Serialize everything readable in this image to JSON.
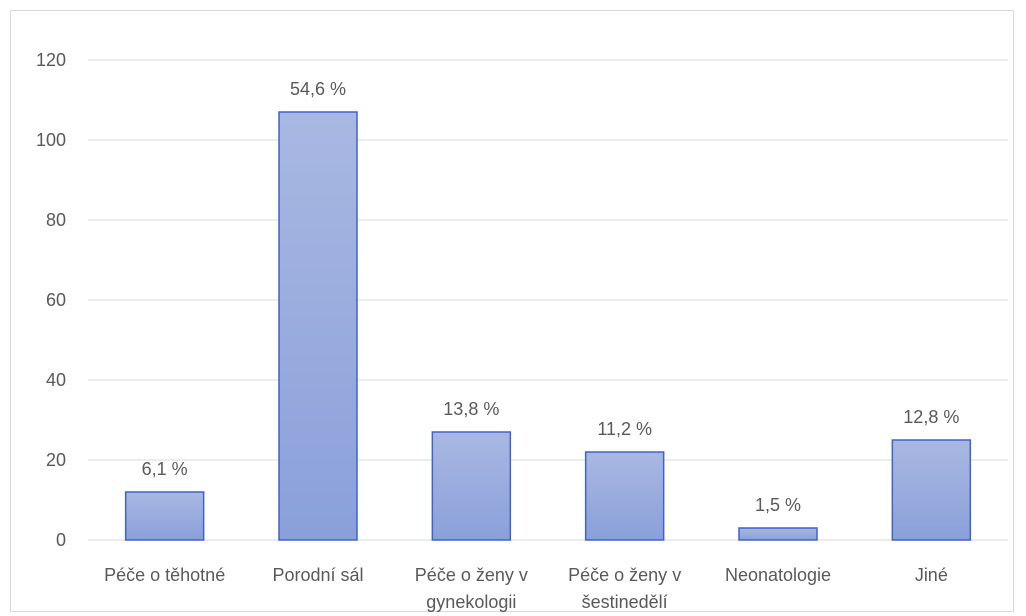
{
  "chart_data": {
    "type": "bar",
    "categories": [
      [
        "Péče o těhotné"
      ],
      [
        "Porodní sál"
      ],
      [
        "Péče o ženy v",
        "gynekologii"
      ],
      [
        "Péče o ženy v",
        "šestinedělí"
      ],
      [
        "Neonatologie"
      ],
      [
        "Jiné"
      ]
    ],
    "values": [
      12,
      107,
      27,
      22,
      3,
      25
    ],
    "data_labels": [
      "6,1 %",
      "54,6 %",
      "13,8 %",
      "11,2 %",
      "1,5 %",
      "12,8 %"
    ],
    "yticks": [
      "0",
      "20",
      "40",
      "60",
      "80",
      "100",
      "120"
    ],
    "ylim": [
      0,
      120
    ],
    "grid": true,
    "title": "",
    "xlabel": "",
    "ylabel": "",
    "colors": {
      "bar_top": "#A9B8E2",
      "bar_bottom": "#8AA0DA",
      "bar_stroke": "#3F63C8",
      "grid": "#D9D9D9",
      "text": "#595959"
    }
  }
}
